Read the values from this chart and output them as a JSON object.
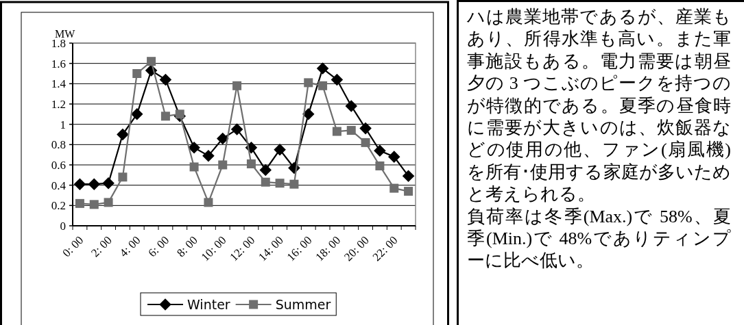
{
  "chart_data": [
    {
      "type": "line",
      "ylabel": "MW",
      "categories": [
        "0: 00",
        null,
        "2: 00",
        null,
        "4: 00",
        null,
        "6: 00",
        null,
        "8: 00",
        null,
        "10: 00",
        null,
        "12: 00",
        null,
        "14: 00",
        null,
        "16: 00",
        null,
        "18: 00",
        null,
        "20: 00",
        null,
        "22: 00",
        null
      ],
      "series": [
        {
          "name": "Winter",
          "color": "#000000",
          "marker": "diamond",
          "values": [
            0.41,
            0.41,
            0.42,
            0.9,
            1.1,
            1.53,
            1.44,
            1.08,
            0.77,
            0.69,
            0.86,
            0.95,
            0.77,
            0.55,
            0.75,
            0.57,
            1.1,
            1.55,
            1.44,
            1.18,
            0.96,
            0.74,
            0.68,
            0.49
          ]
        },
        {
          "name": "Summer",
          "color": "#6e6e6e",
          "marker": "square",
          "values": [
            0.22,
            0.21,
            0.23,
            0.48,
            1.5,
            1.62,
            1.08,
            1.1,
            0.58,
            0.23,
            0.6,
            1.38,
            0.61,
            0.43,
            0.42,
            0.41,
            1.41,
            1.38,
            0.93,
            0.94,
            0.82,
            0.59,
            0.37,
            0.34
          ]
        }
      ],
      "ylim": [
        0,
        1.8
      ],
      "yticks": [
        0,
        0.2,
        0.4,
        0.6,
        0.8,
        1,
        1.2,
        1.4,
        1.6,
        1.8
      ],
      "grid": "y",
      "legend": "bottom"
    },
    {
      "type": "other",
      "annotations": [
        "ハは農業地帯であるが、産業もあり、所得水準も高い。また軍事施設もある。電力需要は朝昼夕の 3 つこぶのピークを持つのが特徴的である。夏季の昼食時に需要が大きいのは、炊飯器などの使用の他、ファン(扇風機)を所有･使用する家庭が多いためと考えられる。",
        "負荷率は冬季(Max.)で 58%、夏季(Min.)で 48%でありティンプーに比べ低い。"
      ]
    }
  ]
}
